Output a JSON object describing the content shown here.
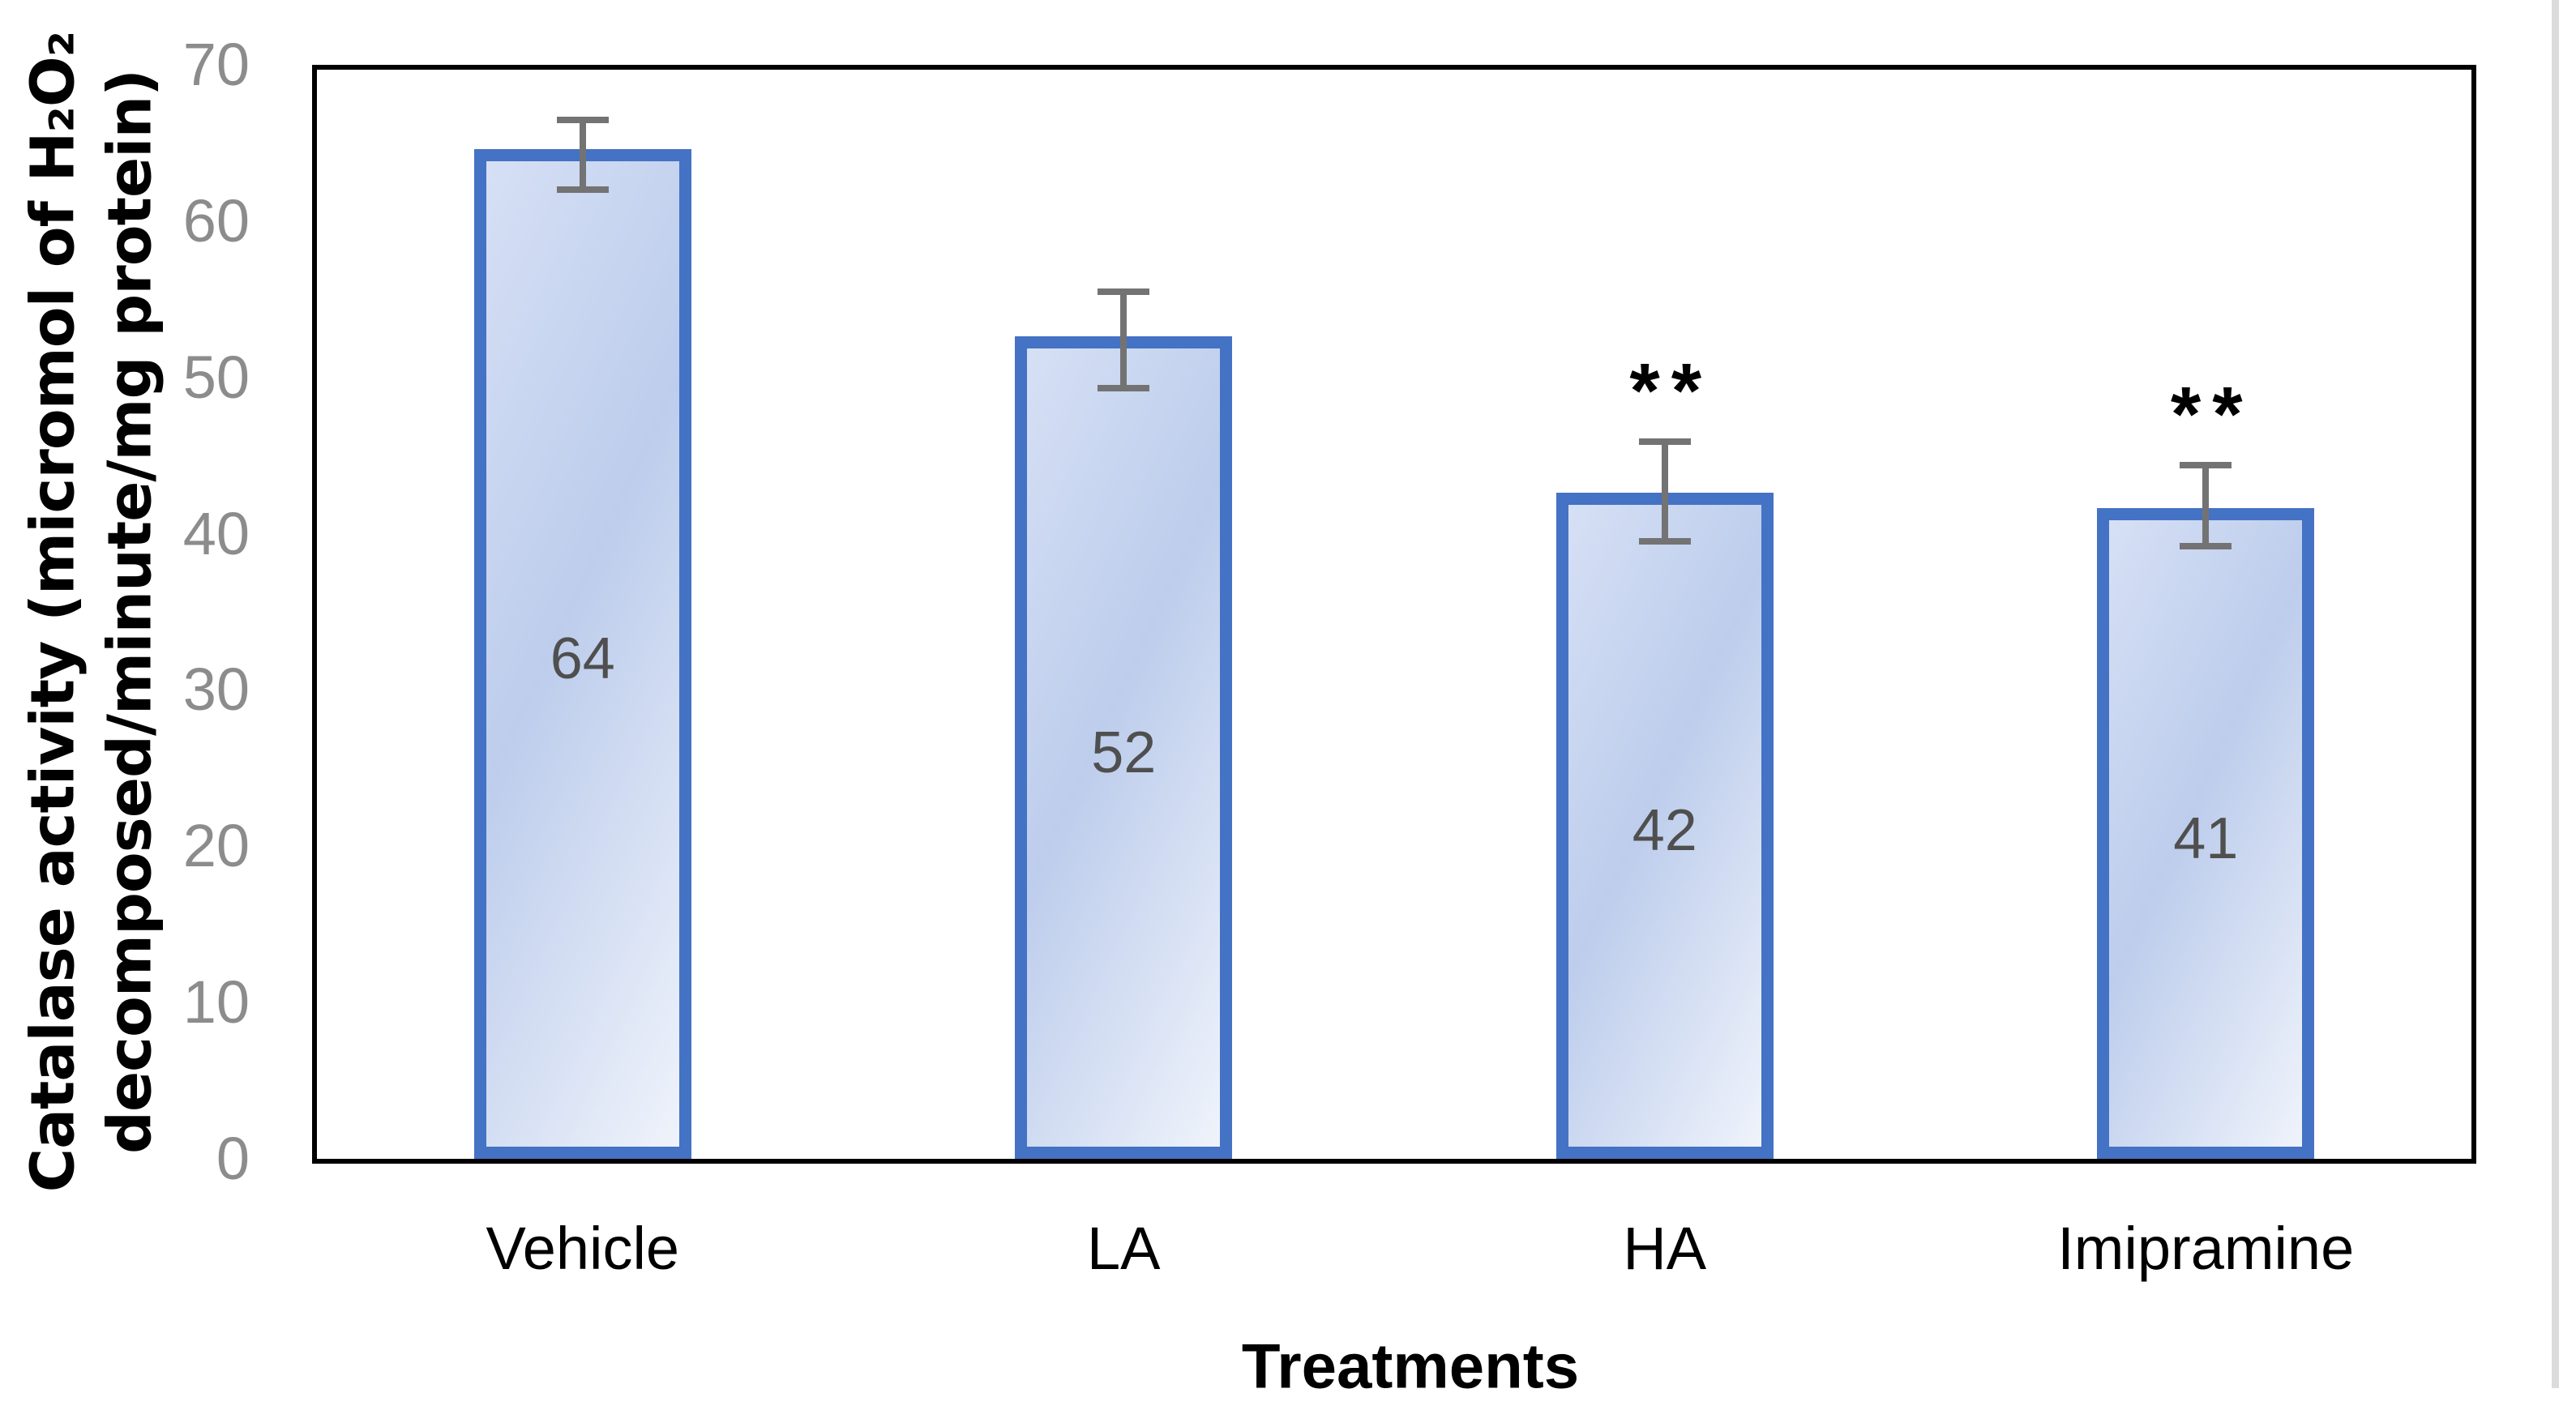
{
  "chart_data": {
    "type": "bar",
    "xlabel": "Treatments",
    "ylabel_line1": "Catalase activity (micromol of H₂O₂",
    "ylabel_line2": "decomposed/minute/mg protein)",
    "categories": [
      "Vehicle",
      "LA",
      "HA",
      "Imipramine"
    ],
    "values": [
      64,
      52,
      42,
      41
    ],
    "data_labels": [
      "64",
      "52",
      "42",
      "41"
    ],
    "error_bars": [
      {
        "low": 62.0,
        "high": 66.5
      },
      {
        "low": 49.3,
        "high": 55.5
      },
      {
        "low": 39.5,
        "high": 45.9
      },
      {
        "low": 39.2,
        "high": 44.4
      }
    ],
    "significance": [
      "",
      "",
      "**",
      "**"
    ],
    "y_ticks": [
      0,
      10,
      20,
      30,
      40,
      50,
      60,
      70
    ],
    "ylim": [
      0,
      70
    ],
    "grid": false,
    "legend": null,
    "colors": {
      "bar_fill_gradient": [
        "#d6e0f5",
        "#bdcdec",
        "#eff3fb"
      ],
      "bar_border": "#4472c4",
      "error_bar": "#737373",
      "tick_label": "#8c8c8c",
      "data_label": "#4f4f4f",
      "axis_frame": "#000000",
      "page_edge_line": "#dcdcdc"
    }
  }
}
